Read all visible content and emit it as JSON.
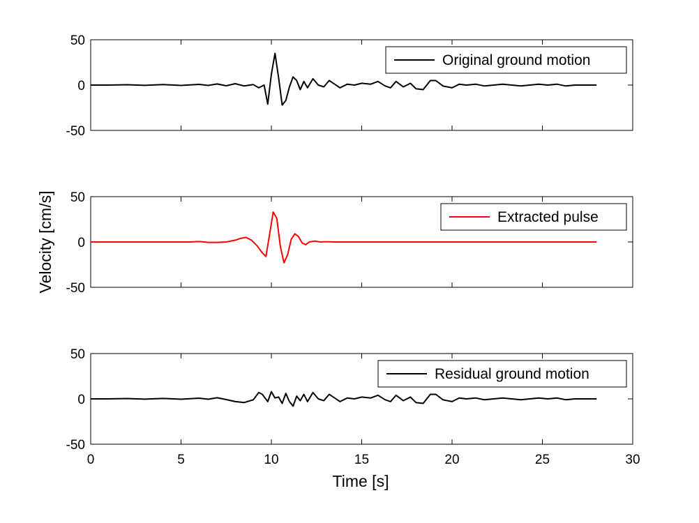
{
  "chart_data": {
    "type": "line",
    "figure": {
      "ylabel": "Velocity [cm/s]",
      "xlabel": "Time [s]"
    },
    "panels": [
      {
        "legend": "Original ground motion",
        "legend_position": "top-right",
        "color": "#000000",
        "xlim": [
          0,
          30
        ],
        "ylim": [
          -50,
          50
        ],
        "yticks": [
          "50",
          "0",
          "-50"
        ],
        "x": [
          0,
          1,
          2,
          3,
          4,
          5,
          6,
          6.5,
          7,
          7.5,
          8,
          8.5,
          9,
          9.3,
          9.6,
          9.8,
          10.0,
          10.2,
          10.4,
          10.6,
          10.8,
          11.0,
          11.2,
          11.4,
          11.6,
          11.8,
          12.0,
          12.3,
          12.6,
          12.9,
          13.2,
          13.5,
          13.8,
          14.2,
          14.6,
          15.0,
          15.5,
          15.9,
          16.3,
          16.6,
          16.9,
          17.3,
          17.7,
          18.0,
          18.4,
          18.8,
          19.1,
          19.5,
          20.0,
          20.4,
          20.8,
          21.3,
          21.8,
          22.3,
          22.8,
          23.3,
          23.8,
          24.3,
          24.8,
          25.3,
          25.8,
          26.3,
          26.8,
          27.3,
          28
        ],
        "y": [
          0,
          0,
          0.4,
          -0.3,
          0.5,
          -0.4,
          0.8,
          -0.4,
          1.2,
          -0.8,
          1.5,
          -1.0,
          0.5,
          -3,
          0,
          -21,
          12,
          35,
          8,
          -22,
          -17,
          -2,
          9,
          5,
          -5,
          4,
          -3,
          7,
          0,
          -2,
          5,
          1,
          -3,
          1,
          0,
          2,
          1,
          4,
          -1,
          -3,
          4,
          -2,
          2,
          -4,
          -5,
          5,
          5,
          -1,
          -3,
          1,
          0,
          1,
          -1,
          0,
          1,
          0,
          -1,
          0,
          1,
          0,
          1,
          -1,
          0,
          0,
          0
        ]
      },
      {
        "legend": "Extracted pulse",
        "legend_position": "top-right",
        "color": "#ff0000",
        "xlim": [
          0,
          30
        ],
        "ylim": [
          -50,
          50
        ],
        "yticks": [
          "50",
          "0",
          "-50"
        ],
        "x": [
          0,
          5,
          5.5,
          6,
          6.5,
          7,
          7.5,
          8,
          8.3,
          8.6,
          8.9,
          9.2,
          9.5,
          9.7,
          9.9,
          10.1,
          10.3,
          10.5,
          10.7,
          10.9,
          11.1,
          11.3,
          11.5,
          11.7,
          11.9,
          12.1,
          12.4,
          12.7,
          13.0,
          13.5,
          14,
          15,
          20,
          25,
          28
        ],
        "y": [
          0,
          0,
          0,
          0.5,
          -0.5,
          -0.5,
          0,
          2,
          4,
          5,
          2,
          -4,
          -12,
          -16,
          8,
          33,
          26,
          -5,
          -23,
          -14,
          3,
          9,
          6,
          -1,
          -3,
          0,
          1,
          0,
          0.3,
          0,
          0,
          0,
          0,
          0,
          0
        ]
      },
      {
        "legend": "Residual ground motion",
        "legend_position": "top-right",
        "color": "#000000",
        "xlim": [
          0,
          30
        ],
        "ylim": [
          -50,
          50
        ],
        "yticks": [
          "50",
          "0",
          "-50"
        ],
        "xticks": [
          "0",
          "5",
          "10",
          "15",
          "20",
          "25",
          "30"
        ],
        "x": [
          0,
          1,
          2,
          3,
          4,
          5,
          6,
          6.5,
          7,
          7.5,
          8,
          8.5,
          9,
          9.3,
          9.5,
          9.8,
          10.0,
          10.2,
          10.4,
          10.6,
          10.8,
          11.0,
          11.2,
          11.4,
          11.6,
          11.8,
          12.0,
          12.3,
          12.6,
          12.9,
          13.2,
          13.5,
          13.8,
          14.2,
          14.6,
          15.0,
          15.5,
          15.9,
          16.3,
          16.6,
          16.9,
          17.3,
          17.7,
          18.0,
          18.4,
          18.8,
          19.1,
          19.5,
          20.0,
          20.4,
          20.8,
          21.3,
          21.8,
          22.3,
          22.8,
          23.3,
          23.8,
          24.3,
          24.8,
          25.3,
          25.8,
          26.3,
          26.8,
          27.3,
          28
        ],
        "y": [
          0,
          0,
          0.4,
          -0.3,
          0.5,
          -0.4,
          0.8,
          -0.4,
          1.2,
          -0.8,
          -3,
          -4,
          -1,
          7,
          5,
          -3,
          8,
          1,
          2,
          -5,
          6,
          -3,
          -8,
          3,
          -2,
          5,
          -3,
          7,
          0,
          -2,
          5,
          1,
          -3,
          1,
          0,
          2,
          1,
          4,
          -1,
          -3,
          4,
          -2,
          2,
          -4,
          -5,
          5,
          5,
          -1,
          -3,
          1,
          0,
          1,
          -1,
          0,
          1,
          0,
          -1,
          0,
          1,
          0,
          1,
          -1,
          0,
          0,
          0
        ]
      }
    ]
  }
}
